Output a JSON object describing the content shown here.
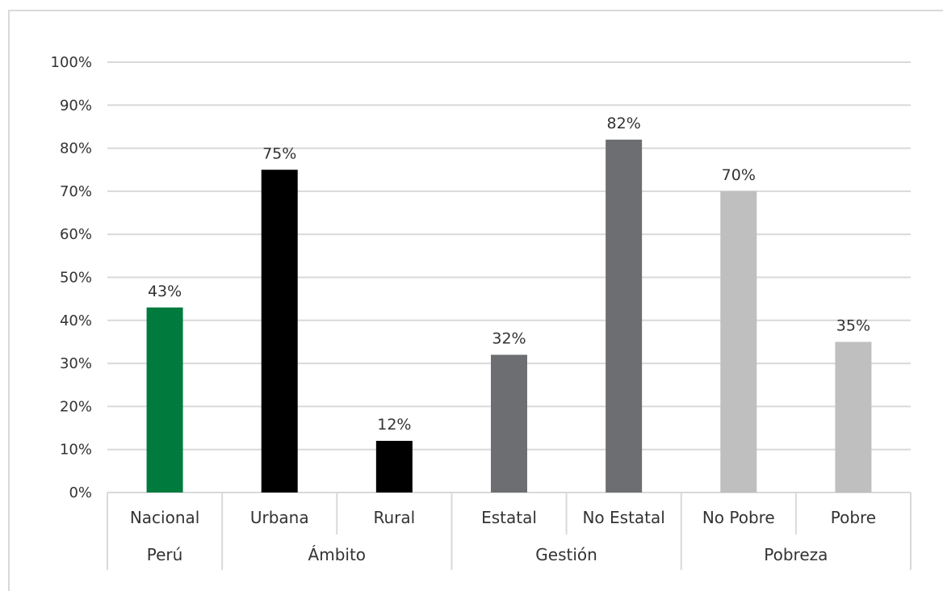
{
  "chart_data": {
    "type": "bar",
    "title": "",
    "xlabel": "",
    "ylabel": "",
    "ylim": [
      0,
      1
    ],
    "y_ticks": [
      "0%",
      "10%",
      "20%",
      "30%",
      "40%",
      "50%",
      "60%",
      "70%",
      "80%",
      "90%",
      "100%"
    ],
    "grid": true,
    "legend": "none",
    "categories": [
      "Nacional",
      "Urbana",
      "Rural",
      "Estatal",
      "No Estatal",
      "No Pobre",
      "Pobre"
    ],
    "values": [
      0.43,
      0.75,
      0.12,
      0.32,
      0.82,
      0.7,
      0.35
    ],
    "data_labels": [
      "43%",
      "75%",
      "12%",
      "32%",
      "82%",
      "70%",
      "35%"
    ],
    "bar_colors": [
      "#007a3d",
      "#000000",
      "#000000",
      "#6d6e71",
      "#6d6e71",
      "#bfbfbf",
      "#bfbfbf"
    ],
    "groups": [
      {
        "label": "Perú",
        "categories": [
          "Nacional"
        ]
      },
      {
        "label": "Ámbito",
        "categories": [
          "Urbana",
          "Rural"
        ]
      },
      {
        "label": "Gestión",
        "categories": [
          "Estatal",
          "No Estatal"
        ]
      },
      {
        "label": "Pobreza",
        "categories": [
          "No Pobre",
          "Pobre"
        ]
      }
    ],
    "colors": {
      "gridline": "#d9d9d9",
      "text": "#333333"
    }
  }
}
